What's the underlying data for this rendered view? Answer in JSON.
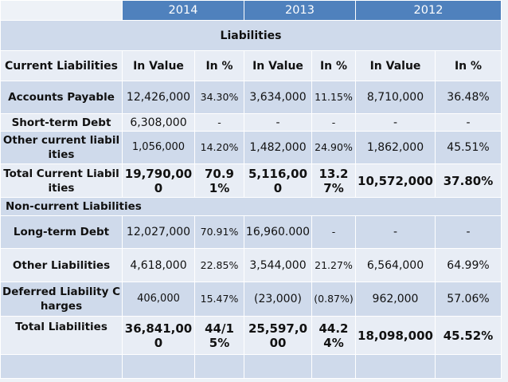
{
  "years": [
    "2014",
    "2013",
    "2012"
  ],
  "section_title": "Liabilities",
  "headers": [
    "Current Liabilities",
    "In Value",
    "In %",
    "In Value",
    "In %",
    "In Value",
    "In %"
  ],
  "rows": {
    "accounts_payable": [
      "Accounts Payable",
      "12,426,000",
      "34.30%",
      "3,634,000",
      "11.15%",
      "8,710,000",
      "36.48%"
    ],
    "short_term_debt": [
      "Short-term Debt",
      "6,308,000",
      "-",
      "-",
      "-",
      "-",
      "-"
    ],
    "other_current": [
      "Other current liabilities",
      "1,056,000",
      "14.20%",
      "1,482,000",
      "24.90%",
      "1,862,000",
      "45.51%"
    ],
    "total_current": [
      "Total Current Liabilities",
      "19,790,000",
      "70.91%",
      "5,116,000",
      "13.27%",
      "10,572,000",
      "37.80%"
    ],
    "non_current_title": "Non-current Liabilities",
    "long_term_debt": [
      "Long-term Debt",
      "12,027,000",
      "70.91%",
      "16,960.000",
      "-",
      "-",
      "-"
    ],
    "other_liabilities": [
      "Other Liabilities",
      "4,618,000",
      "22.85%",
      "3,544,000",
      "21.27%",
      "6,564,000",
      "64.99%"
    ],
    "deferred": [
      "Deferred Liability Charges",
      "406,000",
      "15.47%",
      "(23,000)",
      "(0.87%)",
      "962,000",
      "57.06%"
    ],
    "total_liabilities": [
      "Total Liabilities",
      "36,841,000",
      "44/15%",
      "25,597,000",
      "44.24%",
      "18,098,000",
      "45.52%"
    ]
  }
}
